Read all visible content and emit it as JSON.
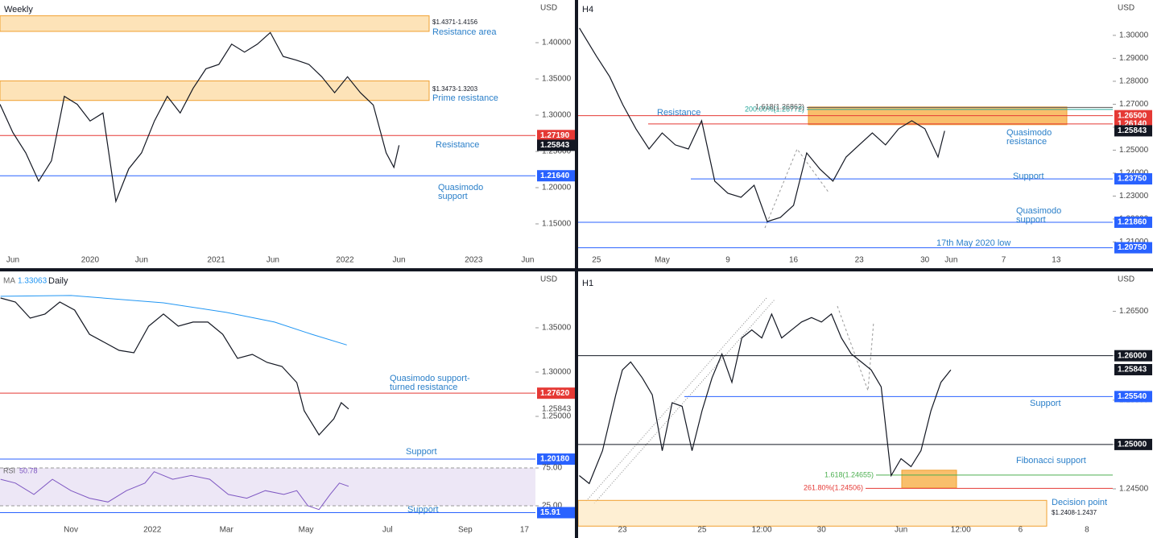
{
  "chart_data": [
    {
      "type": "line",
      "title": "Weekly",
      "currency": "USD",
      "color": "#131722",
      "x": [
        0,
        5,
        10,
        15,
        20,
        25,
        30,
        35,
        40,
        45,
        50,
        55,
        60,
        65,
        70,
        75,
        80,
        85,
        90,
        95,
        100,
        105,
        110,
        115,
        120,
        125,
        130,
        135,
        140,
        145,
        150,
        153,
        155
      ],
      "values": [
        1.315,
        1.276,
        1.248,
        1.209,
        1.237,
        1.326,
        1.315,
        1.292,
        1.303,
        1.181,
        1.226,
        1.248,
        1.292,
        1.326,
        1.303,
        1.337,
        1.364,
        1.37,
        1.398,
        1.387,
        1.398,
        1.414,
        1.381,
        1.376,
        1.37,
        1.353,
        1.331,
        1.353,
        1.331,
        1.314,
        1.248,
        1.228,
        1.2584
      ],
      "xlim": [
        0,
        208
      ],
      "ylim": [
        1.1122,
        1.4589
      ],
      "xticks": [
        {
          "value": 5,
          "label": "Jun"
        },
        {
          "value": 35,
          "label": "2020"
        },
        {
          "value": 55,
          "label": "Jun"
        },
        {
          "value": 84,
          "label": "2021"
        },
        {
          "value": 106,
          "label": "Jun"
        },
        {
          "value": 134,
          "label": "2022"
        },
        {
          "value": 155,
          "label": "Jun"
        },
        {
          "value": 184,
          "label": "2023"
        },
        {
          "value": 205,
          "label": "Jun"
        }
      ],
      "yticks": [
        {
          "value": 1.15,
          "label": "1.15000"
        },
        {
          "value": 1.2,
          "label": "1.20000"
        },
        {
          "value": 1.25,
          "label": "1.25000"
        },
        {
          "value": 1.3,
          "label": "1.30000"
        },
        {
          "value": 1.35,
          "label": "1.35000"
        },
        {
          "value": 1.4,
          "label": "1.40000"
        }
      ],
      "levels": [
        {
          "value": 1.2719,
          "label": "1.27190",
          "color": "#e53935"
        },
        {
          "value": 1.25843,
          "color": "#131722",
          "line": false
        },
        {
          "value": 1.2164,
          "label": "1.21640",
          "color": "#2962ff"
        }
      ],
      "zones": [
        {
          "low": 1.4156,
          "high": 1.4371,
          "label": "$1.4371-1.4156"
        },
        {
          "low": 1.3203,
          "high": 1.3473,
          "label": "$1.3473-1.3203"
        }
      ],
      "annotations": [
        "Resistance area",
        "Prime resistance",
        "Resistance",
        "Quasimodo",
        "support"
      ]
    },
    {
      "type": "line",
      "title": "H4",
      "currency": "USD",
      "color": "#131722",
      "x": [
        -1.3,
        0,
        1,
        2,
        3,
        4,
        5,
        6,
        7,
        8,
        9,
        10,
        11,
        12,
        13,
        14,
        15,
        16,
        17,
        18,
        19,
        20,
        21,
        22,
        23,
        24,
        25,
        26,
        26.5
      ],
      "values": [
        1.3032,
        1.2909,
        1.282,
        1.2698,
        1.2593,
        1.2505,
        1.2575,
        1.2523,
        1.2505,
        1.2628,
        1.2365,
        1.2312,
        1.2295,
        1.2347,
        1.2189,
        1.2207,
        1.226,
        1.2488,
        1.2418,
        1.2365,
        1.247,
        1.2523,
        1.2575,
        1.2523,
        1.2593,
        1.2628,
        1.2593,
        1.247,
        1.2584
      ],
      "xlim": [
        -1.4,
        39.3
      ],
      "ylim": [
        1.2049,
        1.3154
      ],
      "xticks": [
        {
          "value": 0,
          "label": "25"
        },
        {
          "value": 5,
          "label": "May"
        },
        {
          "value": 10,
          "label": "9"
        },
        {
          "value": 15,
          "label": "16"
        },
        {
          "value": 20,
          "label": "23"
        },
        {
          "value": 25,
          "label": "30"
        },
        {
          "value": 27,
          "label": "Jun"
        },
        {
          "value": 31,
          "label": "7"
        },
        {
          "value": 35,
          "label": "13"
        }
      ],
      "yticks": [
        {
          "value": 1.21,
          "label": "1.21000"
        },
        {
          "value": 1.22,
          "label": "1.22000"
        },
        {
          "value": 1.23,
          "label": "1.23000"
        },
        {
          "value": 1.24,
          "label": "1.24000"
        },
        {
          "value": 1.25,
          "label": "1.25000"
        },
        {
          "value": 1.26,
          "label": "1.26000"
        },
        {
          "value": 1.27,
          "label": "1.27000"
        },
        {
          "value": 1.28,
          "label": "1.28000"
        },
        {
          "value": 1.29,
          "label": "1.29000"
        },
        {
          "value": 1.3,
          "label": "1.30000"
        }
      ],
      "levels": [
        {
          "value": 1.265,
          "label": "1.26500",
          "color": "#e53935"
        },
        {
          "value": 1.2614,
          "label": "1.26140",
          "color": "#e53935"
        },
        {
          "value": 1.25843,
          "color": "#131722",
          "line": false
        },
        {
          "value": 1.2375,
          "label": "1.23750",
          "color": "#2962ff"
        },
        {
          "value": 1.2186,
          "label": "1.21860",
          "color": "#2962ff"
        },
        {
          "value": 1.2075,
          "label": "1.20750",
          "color": "#2962ff"
        }
      ],
      "zones": [
        {
          "low": 1.2611,
          "high": 1.2688
        }
      ],
      "fibs": [
        {
          "label": "200.00%(1.26772)",
          "value": 1.26772,
          "color": "#26a69a"
        },
        {
          "label": "1.618(1.26862)",
          "value": 1.26862,
          "color": "#555555"
        }
      ],
      "annotations": [
        "Resistance",
        "Quasimodo",
        "resistance",
        "Support",
        "Quasimodo",
        "support",
        "17th May 2020 low"
      ]
    },
    {
      "type": "line",
      "title": "Daily",
      "currency": "USD",
      "color": "#131722",
      "x": [
        -38,
        -30,
        -22,
        -14,
        -6,
        2,
        10,
        18,
        26,
        34,
        42,
        50,
        58,
        66,
        74,
        82,
        90,
        98,
        106,
        114,
        122,
        126,
        134,
        142,
        146,
        150
      ],
      "values": [
        1.3836,
        1.3791,
        1.3609,
        1.3655,
        1.3791,
        1.37,
        1.3427,
        1.3336,
        1.3245,
        1.3218,
        1.3518,
        1.3655,
        1.3518,
        1.3564,
        1.3564,
        1.3427,
        1.3155,
        1.32,
        1.3109,
        1.3064,
        1.2882,
        1.2564,
        1.2291,
        1.2473,
        1.2655,
        1.2584
      ],
      "xlim": [
        -38.3,
        250.9
      ],
      "ylim": [
        1.1973,
        1.4136
      ],
      "xticks": [
        {
          "value": 0,
          "label": "Nov"
        },
        {
          "value": 44,
          "label": "2022"
        },
        {
          "value": 84,
          "label": "Mar"
        },
        {
          "value": 127,
          "label": "May"
        },
        {
          "value": 171,
          "label": "Jul"
        },
        {
          "value": 213,
          "label": "Sep"
        },
        {
          "value": 245,
          "label": "17"
        }
      ],
      "yticks": [
        {
          "value": 1.25,
          "label": "1.25000"
        },
        {
          "value": 1.3,
          "label": "1.30000"
        },
        {
          "value": 1.35,
          "label": "1.35000"
        }
      ],
      "levels": [
        {
          "value": 1.2762,
          "label": "1.27620",
          "color": "#e53935"
        },
        {
          "value": 1.25843,
          "line": false
        },
        {
          "value": 1.2018,
          "label": "1.20180",
          "color": "#2962ff"
        }
      ],
      "ma": {
        "name": "MA",
        "last": 1.33063,
        "color": "#2196f3",
        "x": [
          -38,
          0,
          50,
          84,
          110,
          130,
          149
        ],
        "values": [
          1.3855,
          1.3864,
          1.3782,
          1.3673,
          1.3564,
          1.3427,
          1.3306
        ]
      },
      "rsi": {
        "name": "RSI",
        "last": 50.78,
        "color": "#7e57c2",
        "ylim": [
          12.2,
          79.3
        ],
        "x": [
          -38,
          -30,
          -20,
          -10,
          0,
          10,
          20,
          30,
          40,
          45,
          55,
          65,
          75,
          85,
          95,
          105,
          115,
          122,
          128,
          134,
          140,
          145,
          150
        ],
        "values": [
          60,
          55,
          40,
          60,
          45,
          35,
          30,
          45,
          55,
          70,
          60,
          65,
          60,
          40,
          35,
          45,
          40,
          45,
          25,
          20,
          40,
          55,
          50.78
        ],
        "yticks": [
          {
            "value": 75,
            "label": "75.00"
          },
          {
            "value": 25,
            "label": "25.00"
          }
        ],
        "levels": [
          {
            "value": 15.91,
            "color": "#2962ff"
          }
        ]
      },
      "annotations": [
        "Quasimodo support-",
        "turned resistance",
        "Support",
        "Support"
      ]
    },
    {
      "type": "line",
      "title": "H1",
      "currency": "USD",
      "color": "#131722",
      "x": [
        -26,
        -20,
        -12,
        -4,
        0,
        5,
        12,
        18,
        24,
        30,
        36,
        42,
        48,
        54,
        60,
        66,
        72,
        78,
        84,
        90,
        96,
        102,
        108,
        114,
        120,
        126,
        132,
        138,
        144,
        150,
        156,
        162,
        168,
        174,
        180,
        186,
        192,
        198
      ],
      "values": [
        1.2465,
        1.2456,
        1.2493,
        1.2556,
        1.2584,
        1.2593,
        1.2575,
        1.2556,
        1.2493,
        1.2547,
        1.2543,
        1.2493,
        1.2538,
        1.2575,
        1.2602,
        1.257,
        1.262,
        1.2629,
        1.262,
        1.2647,
        1.262,
        1.2629,
        1.2638,
        1.2643,
        1.2638,
        1.2647,
        1.262,
        1.2602,
        1.2593,
        1.2584,
        1.2565,
        1.2465,
        1.2484,
        1.2475,
        1.2493,
        1.2538,
        1.257,
        1.2584
      ],
      "xlim": [
        -26.7,
        295.6
      ],
      "ylim": [
        1.24155,
        1.2695
      ],
      "xticks": [
        {
          "value": 0,
          "label": "23"
        },
        {
          "value": 48,
          "label": "25"
        },
        {
          "value": 84,
          "label": "12:00"
        },
        {
          "value": 120,
          "label": "30"
        },
        {
          "value": 168,
          "label": "Jun"
        },
        {
          "value": 204,
          "label": "12:00"
        },
        {
          "value": 240,
          "label": "6"
        },
        {
          "value": 280,
          "label": "8"
        }
      ],
      "yticks": [
        {
          "value": 1.245,
          "label": "1.24500"
        },
        {
          "value": 1.25,
          "label": "1.25000"
        },
        {
          "value": 1.255,
          "label": "1.25500"
        },
        {
          "value": 1.26,
          "label": "1.26000"
        },
        {
          "value": 1.265,
          "label": "1.26500"
        }
      ],
      "levels": [
        {
          "value": 1.26,
          "label": "1.26000",
          "color": "#131722"
        },
        {
          "value": 1.25843,
          "color": "#131722",
          "line": false
        },
        {
          "value": 1.2554,
          "label": "1.25540",
          "color": "#2962ff"
        },
        {
          "value": 1.25,
          "label": "1.25000",
          "color": "#131722"
        }
      ],
      "zones": [
        {
          "low": 1.2451,
          "high": 1.2471
        },
        {
          "low": 1.2408,
          "high": 1.2437,
          "label": "$1.2408-1.2437"
        }
      ],
      "fibs": [
        {
          "label": "1.618(1.24655)",
          "value": 1.24655,
          "color": "#4caf50"
        },
        {
          "label": "261.80%(1.24506)",
          "value": 1.24506,
          "color": "#e53935"
        }
      ],
      "annotations": [
        "Support",
        "Fibonacci support",
        "Decision point"
      ]
    }
  ]
}
